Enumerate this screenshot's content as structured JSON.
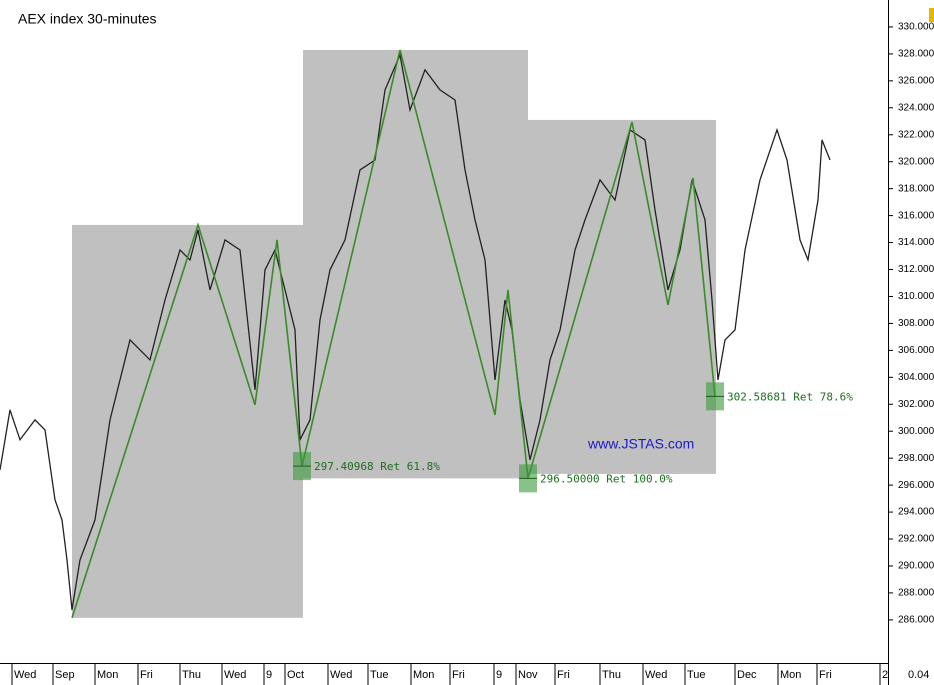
{
  "chart_data": {
    "type": "line",
    "title": "AEX index 30-minutes",
    "watermark": "www.JSTAS.com",
    "corner_label": "0.04",
    "xlim": [
      0,
      888
    ],
    "ylim": [
      282.8,
      332.0
    ],
    "yticks": [
      {
        "value": 286,
        "label": "286.000"
      },
      {
        "value": 288,
        "label": "288.000"
      },
      {
        "value": 290,
        "label": "290.000"
      },
      {
        "value": 292,
        "label": "292.000"
      },
      {
        "value": 294,
        "label": "294.000"
      },
      {
        "value": 296,
        "label": "296.000"
      },
      {
        "value": 298,
        "label": "298.000"
      },
      {
        "value": 300,
        "label": "300.000"
      },
      {
        "value": 302,
        "label": "302.000"
      },
      {
        "value": 304,
        "label": "304.000"
      },
      {
        "value": 306,
        "label": "306.000"
      },
      {
        "value": 308,
        "label": "308.000"
      },
      {
        "value": 310,
        "label": "310.000"
      },
      {
        "value": 312,
        "label": "312.000"
      },
      {
        "value": 314,
        "label": "314.000"
      },
      {
        "value": 316,
        "label": "316.000"
      },
      {
        "value": 318,
        "label": "318.000"
      },
      {
        "value": 320,
        "label": "320.000"
      },
      {
        "value": 322,
        "label": "322.000"
      },
      {
        "value": 324,
        "label": "324.000"
      },
      {
        "value": 326,
        "label": "326.000"
      },
      {
        "value": 328,
        "label": "328.000"
      },
      {
        "value": 330,
        "label": "330.000"
      }
    ],
    "xticks": [
      {
        "value": 12,
        "label": "Wed"
      },
      {
        "value": 53,
        "label": "Sep"
      },
      {
        "value": 95,
        "label": "Mon"
      },
      {
        "value": 138,
        "label": "Fri"
      },
      {
        "value": 180,
        "label": "Thu"
      },
      {
        "value": 222,
        "label": "Wed"
      },
      {
        "value": 264,
        "label": "9"
      },
      {
        "value": 285,
        "label": "Oct"
      },
      {
        "value": 328,
        "label": "Wed"
      },
      {
        "value": 368,
        "label": "Tue"
      },
      {
        "value": 411,
        "label": "Mon"
      },
      {
        "value": 450,
        "label": "Fri"
      },
      {
        "value": 494,
        "label": "9"
      },
      {
        "value": 516,
        "label": "Nov"
      },
      {
        "value": 555,
        "label": "Fri"
      },
      {
        "value": 600,
        "label": "Thu"
      },
      {
        "value": 643,
        "label": "Wed"
      },
      {
        "value": 685,
        "label": "Tue"
      },
      {
        "value": 735,
        "label": "Dec"
      },
      {
        "value": 778,
        "label": "Mon"
      },
      {
        "value": 817,
        "label": "Fri"
      },
      {
        "value": 880,
        "label": "2"
      }
    ],
    "boxes": [
      {
        "color": "#c0c0c0",
        "x": [
          72,
          303
        ],
        "y": [
          286.15,
          315.31
        ]
      },
      {
        "color": "#c0c0c0",
        "x": [
          303,
          528
        ],
        "y": [
          296.5,
          328.29
        ]
      },
      {
        "color": "#c0c0c0",
        "x": [
          528,
          716
        ],
        "y": [
          296.83,
          323.1
        ]
      }
    ],
    "series": [
      {
        "color": "#222222",
        "x": [
          0,
          10,
          20,
          35,
          45,
          55,
          62,
          67,
          72,
          80,
          95,
          110,
          130,
          150,
          165,
          180,
          190,
          198,
          210,
          225,
          240,
          255,
          265,
          275,
          285,
          295,
          300,
          310,
          320,
          330,
          345,
          360,
          375,
          385,
          400,
          410,
          425,
          440,
          455,
          465,
          475,
          485,
          495,
          505,
          512,
          520,
          530,
          540,
          550,
          560,
          575,
          585,
          600,
          615,
          630,
          645,
          655,
          668,
          680,
          692,
          705,
          712,
          718,
          725,
          735,
          745,
          760,
          777,
          787,
          800,
          808,
          818,
          822,
          830
        ],
        "values": [
          297.13,
          301.58,
          299.36,
          300.84,
          300.1,
          294.9,
          293.42,
          290.45,
          286.74,
          290.45,
          293.42,
          300.84,
          306.78,
          305.29,
          309.74,
          313.45,
          312.71,
          314.94,
          310.49,
          314.2,
          313.45,
          303.07,
          311.97,
          313.45,
          310.49,
          307.52,
          299.36,
          300.84,
          308.26,
          311.97,
          314.2,
          319.39,
          320.13,
          325.33,
          327.92,
          323.84,
          326.81,
          325.33,
          324.58,
          319.39,
          315.68,
          312.71,
          303.81,
          309.74,
          307.52,
          302.32,
          297.87,
          300.84,
          305.29,
          307.52,
          313.45,
          315.68,
          318.65,
          317.16,
          322.36,
          321.62,
          316.42,
          310.49,
          313.45,
          318.65,
          315.68,
          309.74,
          303.81,
          306.78,
          307.52,
          313.45,
          318.65,
          322.36,
          320.13,
          314.2,
          312.71,
          317.16,
          321.62,
          320.13
        ]
      },
      {
        "color": "#3a8a2a",
        "x": [
          72,
          198,
          255,
          277,
          302,
          400,
          495,
          508,
          528,
          632,
          668,
          693,
          715
        ],
        "values": [
          286.15,
          315.31,
          301.95,
          314.2,
          297.41,
          328.29,
          301.21,
          310.49,
          296.5,
          322.95,
          309.37,
          318.8,
          302.59
        ]
      }
    ],
    "annotations": [
      {
        "text": "297.40968 Ret 61.8%",
        "x": 302,
        "y": 297.40968
      },
      {
        "text": "296.50000 Ret 100.0%",
        "x": 528,
        "y": 296.5
      },
      {
        "text": "302.58681 Ret 78.6%",
        "x": 715,
        "y": 302.58681
      }
    ]
  }
}
